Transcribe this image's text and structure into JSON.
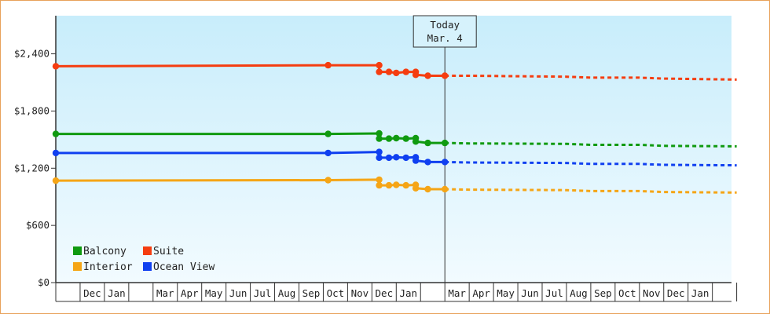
{
  "chart_data": {
    "type": "line",
    "y_axis": {
      "ticks": [
        "$0",
        "$600",
        "$1,200",
        "$1,800",
        "$2,400"
      ],
      "tick_values": [
        0,
        600,
        1200,
        1800,
        2400
      ],
      "ylim": [
        0,
        2800
      ]
    },
    "x_axis": {
      "month_labels": [
        "",
        "Dec",
        "Jan",
        "",
        "Mar",
        "Apr",
        "May",
        "Jun",
        "Jul",
        "Aug",
        "Sep",
        "Oct",
        "Nov",
        "Dec",
        "Jan",
        "",
        "Mar",
        "Apr",
        "May",
        "Jun",
        "Jul",
        "Aug",
        "Sep",
        "Oct",
        "Nov",
        "Dec",
        "Jan",
        ""
      ]
    },
    "today_marker": {
      "line1": "Today",
      "line2": "Mar. 4",
      "x": 16.0
    },
    "grid": false,
    "legend": {
      "placement": "bottom-left",
      "entries": [
        {
          "name": "Balcony",
          "color": "#109a10"
        },
        {
          "name": "Suite",
          "color": "#f53d10"
        },
        {
          "name": "Interior",
          "color": "#f5a516"
        },
        {
          "name": "Ocean View",
          "color": "#1040f0"
        }
      ]
    },
    "series": [
      {
        "name": "Suite",
        "color": "#f53d10",
        "historical": [
          [
            0,
            2270
          ],
          [
            11.2,
            2280
          ],
          [
            13.3,
            2280
          ],
          [
            13.3,
            2210
          ],
          [
            13.7,
            2210
          ],
          [
            14.0,
            2200
          ],
          [
            14.4,
            2210
          ],
          [
            14.8,
            2210
          ],
          [
            14.8,
            2180
          ],
          [
            15.3,
            2170
          ],
          [
            16.0,
            2170
          ]
        ],
        "points": [
          [
            0,
            2270
          ],
          [
            11.2,
            2280
          ],
          [
            13.3,
            2280
          ],
          [
            13.3,
            2210
          ],
          [
            13.7,
            2210
          ],
          [
            14.0,
            2200
          ],
          [
            14.4,
            2210
          ],
          [
            14.8,
            2210
          ],
          [
            14.8,
            2180
          ],
          [
            15.3,
            2170
          ],
          [
            16.0,
            2170
          ]
        ],
        "forecast": [
          [
            16.0,
            2170
          ],
          [
            17.0,
            2170
          ],
          [
            21.0,
            2160
          ],
          [
            22.0,
            2150
          ],
          [
            24.0,
            2150
          ],
          [
            25.0,
            2140
          ],
          [
            28.0,
            2130
          ]
        ]
      },
      {
        "name": "Balcony",
        "color": "#109a10",
        "historical": [
          [
            0,
            1560
          ],
          [
            11.2,
            1560
          ],
          [
            13.3,
            1565
          ],
          [
            13.3,
            1510
          ],
          [
            13.7,
            1510
          ],
          [
            14.0,
            1515
          ],
          [
            14.4,
            1510
          ],
          [
            14.8,
            1515
          ],
          [
            14.8,
            1480
          ],
          [
            15.3,
            1465
          ],
          [
            16.0,
            1465
          ]
        ],
        "points": [
          [
            0,
            1560
          ],
          [
            11.2,
            1560
          ],
          [
            13.3,
            1565
          ],
          [
            13.3,
            1510
          ],
          [
            13.7,
            1510
          ],
          [
            14.0,
            1515
          ],
          [
            14.4,
            1510
          ],
          [
            14.8,
            1515
          ],
          [
            14.8,
            1480
          ],
          [
            15.3,
            1465
          ],
          [
            16.0,
            1465
          ]
        ],
        "forecast": [
          [
            16.0,
            1465
          ],
          [
            17.0,
            1460
          ],
          [
            21.0,
            1455
          ],
          [
            22.0,
            1445
          ],
          [
            24.0,
            1445
          ],
          [
            25.0,
            1435
          ],
          [
            28.0,
            1430
          ]
        ]
      },
      {
        "name": "Ocean View",
        "color": "#1040f0",
        "historical": [
          [
            0,
            1360
          ],
          [
            11.2,
            1360
          ],
          [
            13.3,
            1370
          ],
          [
            13.3,
            1310
          ],
          [
            13.7,
            1310
          ],
          [
            14.0,
            1315
          ],
          [
            14.4,
            1310
          ],
          [
            14.8,
            1315
          ],
          [
            14.8,
            1280
          ],
          [
            15.3,
            1265
          ],
          [
            16.0,
            1265
          ]
        ],
        "points": [
          [
            0,
            1360
          ],
          [
            11.2,
            1360
          ],
          [
            13.3,
            1370
          ],
          [
            13.3,
            1310
          ],
          [
            13.7,
            1310
          ],
          [
            14.0,
            1315
          ],
          [
            14.4,
            1310
          ],
          [
            14.8,
            1315
          ],
          [
            14.8,
            1280
          ],
          [
            15.3,
            1265
          ],
          [
            16.0,
            1265
          ]
        ],
        "forecast": [
          [
            16.0,
            1265
          ],
          [
            17.0,
            1260
          ],
          [
            21.0,
            1255
          ],
          [
            22.0,
            1245
          ],
          [
            24.0,
            1245
          ],
          [
            25.0,
            1235
          ],
          [
            28.0,
            1230
          ]
        ]
      },
      {
        "name": "Interior",
        "color": "#f5a516",
        "historical": [
          [
            0,
            1070
          ],
          [
            11.2,
            1075
          ],
          [
            13.3,
            1080
          ],
          [
            13.3,
            1020
          ],
          [
            13.7,
            1020
          ],
          [
            14.0,
            1025
          ],
          [
            14.4,
            1020
          ],
          [
            14.8,
            1025
          ],
          [
            14.8,
            990
          ],
          [
            15.3,
            980
          ],
          [
            16.0,
            980
          ]
        ],
        "points": [
          [
            0,
            1070
          ],
          [
            11.2,
            1075
          ],
          [
            13.3,
            1080
          ],
          [
            13.3,
            1020
          ],
          [
            13.7,
            1020
          ],
          [
            14.0,
            1025
          ],
          [
            14.4,
            1020
          ],
          [
            14.8,
            1025
          ],
          [
            14.8,
            990
          ],
          [
            15.3,
            980
          ],
          [
            16.0,
            980
          ]
        ],
        "forecast": [
          [
            16.0,
            980
          ],
          [
            17.0,
            975
          ],
          [
            21.0,
            970
          ],
          [
            22.0,
            960
          ],
          [
            24.0,
            960
          ],
          [
            25.0,
            950
          ],
          [
            28.0,
            945
          ]
        ]
      }
    ]
  }
}
